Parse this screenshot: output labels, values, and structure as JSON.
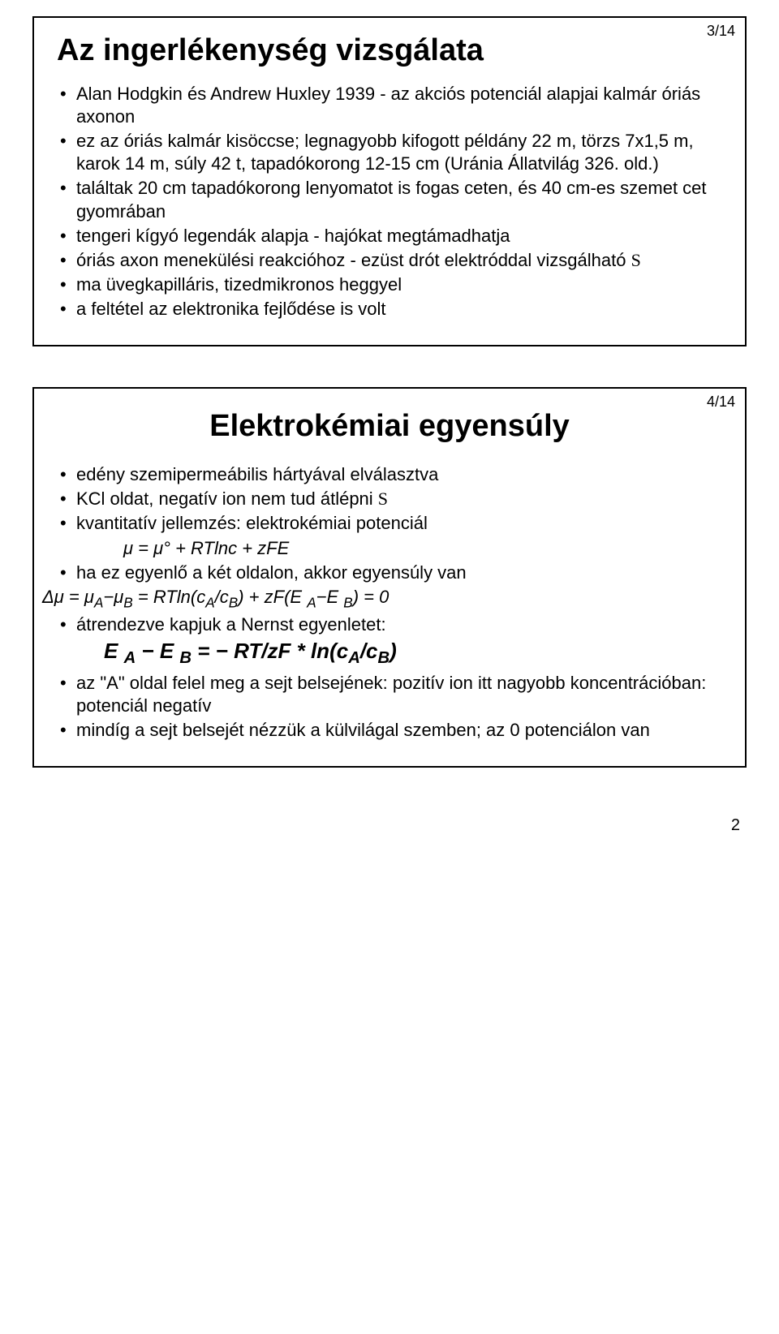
{
  "page_number": "2",
  "slides": [
    {
      "num": "3/14",
      "title": "Az ingerlékenység vizsgálata",
      "items": [
        "Alan Hodgkin és Andrew Huxley 1939 - az akciós potenciál alapjai kalmár óriás axonon",
        "ez az óriás kalmár kisöccse; legnagyobb kifogott példány 22 m, törzs 7x1,5 m, karok 14 m, súly 42 t, tapadókorong 12-15 cm (Uránia Állatvilág 326. old.)",
        "találtak 20 cm tapadókorong lenyomatot is fogas ceten, és 40 cm-es szemet cet gyomrában",
        "tengeri kígyó legendák alapja - hajókat megtámadhatja",
        "óriás axon menekülési reakcióhoz - ezüst drót elektróddal vizsgálható ",
        "ma üvegkapilláris, tizedmikronos heggyel",
        "a feltétel az elektronika fejlődése is volt"
      ],
      "squiggle": "S"
    },
    {
      "num": "4/14",
      "title": "Elektrokémiai egyensúly",
      "items": {
        "b1": "edény szemipermeábilis hártyával elválasztva",
        "b2": "KCl oldat, negatív ion nem tud átlépni ",
        "b3": "kvantitatív jellemzés: elektrokémiai potenciál",
        "eq1_prefix": "μ = μ° + RT",
        "eq1_mid": "ln",
        "eq1_suffix": "c + zFE",
        "b4": "ha ez egyenlő a két oldalon, akkor egyensúly van",
        "eq2_a": "Δμ = μ",
        "eq2_b": "−μ",
        "eq2_c": " = RTln(c",
        "eq2_d": "/c",
        "eq2_e": ") + zF(E ",
        "eq2_f": "−E ",
        "eq2_g": ") = 0",
        "b5": "átrendezve kapjuk a Nernst egyenletet:",
        "eq3_a": "E ",
        "eq3_b": " − E ",
        "eq3_c": " = − RT/zF * ln(c",
        "eq3_d": "/c",
        "eq3_e": ")",
        "b6": "az \"A\" oldal felel meg a sejt belsejének: pozitív ion itt nagyobb koncentrációban: potenciál negatív",
        "b7": "mindíg a sejt belsejét nézzük a külvilágal szemben; az 0 potenciálon van"
      },
      "subA": "A",
      "subB": "B",
      "squiggle": "S"
    }
  ]
}
